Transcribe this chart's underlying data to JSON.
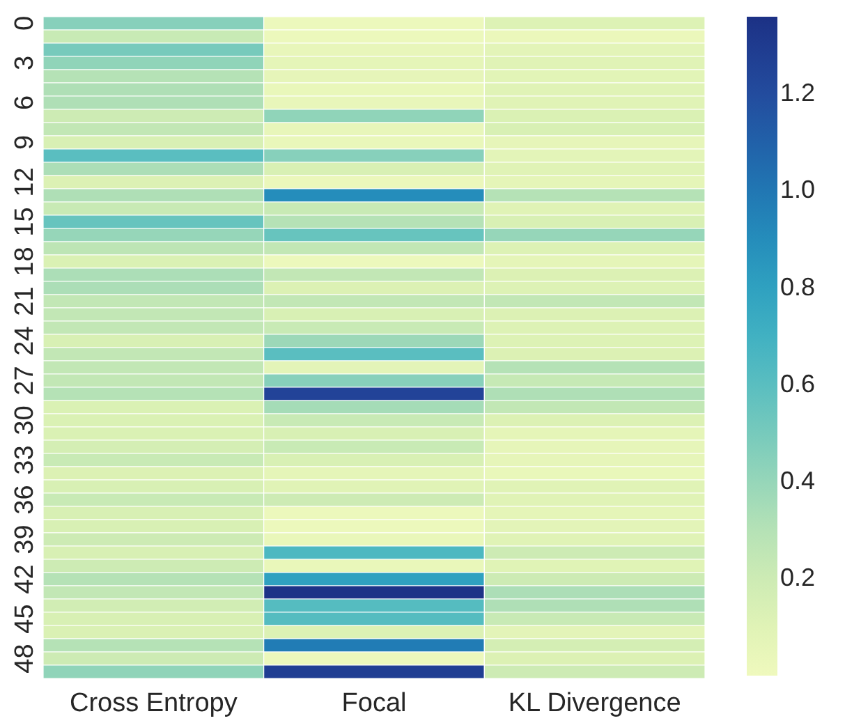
{
  "chart_data": {
    "type": "heatmap",
    "categories": [
      "Cross Entropy",
      "Focal",
      "KL Divergence"
    ],
    "y_categories": [
      "0",
      null,
      null,
      "3",
      null,
      null,
      "6",
      null,
      null,
      "9",
      null,
      null,
      "12",
      null,
      null,
      "15",
      null,
      null,
      "18",
      null,
      null,
      "21",
      null,
      null,
      "24",
      null,
      null,
      "27",
      null,
      null,
      "30",
      null,
      null,
      "33",
      null,
      null,
      "36",
      null,
      null,
      "39",
      null,
      null,
      "42",
      null,
      null,
      "45",
      null,
      null,
      "48",
      null
    ],
    "cells": [
      [
        0.45,
        0.02,
        0.12
      ],
      [
        0.22,
        0.02,
        0.03
      ],
      [
        0.5,
        0.05,
        0.08
      ],
      [
        0.42,
        0.07,
        0.1
      ],
      [
        0.3,
        0.06,
        0.09
      ],
      [
        0.32,
        0.04,
        0.1
      ],
      [
        0.32,
        0.05,
        0.1
      ],
      [
        0.2,
        0.42,
        0.14
      ],
      [
        0.25,
        0.05,
        0.15
      ],
      [
        0.15,
        0.04,
        0.06
      ],
      [
        0.6,
        0.45,
        0.08
      ],
      [
        0.33,
        0.15,
        0.1
      ],
      [
        0.13,
        0.03,
        0.07
      ],
      [
        0.32,
        0.9,
        0.3
      ],
      [
        0.22,
        0.22,
        0.1
      ],
      [
        0.55,
        0.3,
        0.15
      ],
      [
        0.4,
        0.55,
        0.4
      ],
      [
        0.27,
        0.25,
        0.12
      ],
      [
        0.14,
        0.02,
        0.07
      ],
      [
        0.33,
        0.25,
        0.13
      ],
      [
        0.33,
        0.13,
        0.12
      ],
      [
        0.25,
        0.25,
        0.25
      ],
      [
        0.25,
        0.15,
        0.13
      ],
      [
        0.25,
        0.22,
        0.12
      ],
      [
        0.15,
        0.38,
        0.12
      ],
      [
        0.25,
        0.6,
        0.13
      ],
      [
        0.25,
        0.08,
        0.3
      ],
      [
        0.25,
        0.45,
        0.23
      ],
      [
        0.3,
        1.25,
        0.32
      ],
      [
        0.14,
        0.35,
        0.25
      ],
      [
        0.14,
        0.22,
        0.13
      ],
      [
        0.14,
        0.15,
        0.07
      ],
      [
        0.17,
        0.22,
        0.06
      ],
      [
        0.22,
        0.15,
        0.06
      ],
      [
        0.13,
        0.07,
        0.04
      ],
      [
        0.15,
        0.1,
        0.1
      ],
      [
        0.22,
        0.2,
        0.1
      ],
      [
        0.15,
        0.02,
        0.07
      ],
      [
        0.15,
        0.02,
        0.08
      ],
      [
        0.2,
        0.04,
        0.1
      ],
      [
        0.15,
        0.65,
        0.2
      ],
      [
        0.2,
        0.04,
        0.1
      ],
      [
        0.3,
        0.8,
        0.2
      ],
      [
        0.25,
        1.35,
        0.33
      ],
      [
        0.18,
        0.62,
        0.32
      ],
      [
        0.15,
        0.62,
        0.22
      ],
      [
        0.14,
        0.13,
        0.08
      ],
      [
        0.3,
        0.98,
        0.17
      ],
      [
        0.2,
        0.02,
        0.13
      ],
      [
        0.42,
        1.28,
        0.2
      ]
    ],
    "clim": [
      0.0,
      1.36
    ],
    "cticks": [
      0.2,
      0.4,
      0.6,
      0.8,
      {
        "value": 1.0,
        "label": "1.0"
      },
      1.2
    ]
  }
}
